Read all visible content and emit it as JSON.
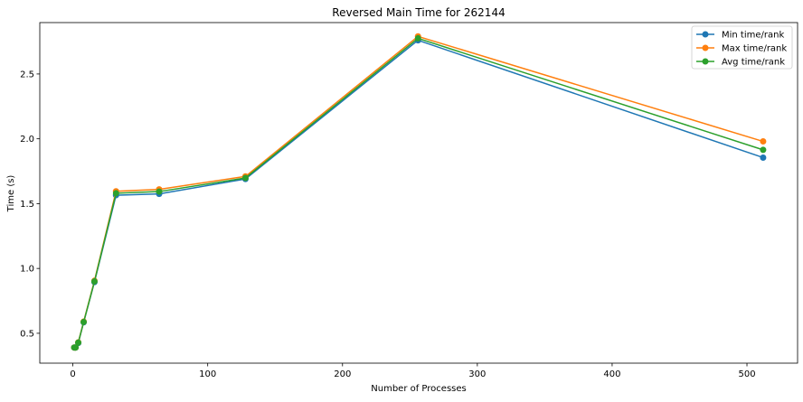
{
  "chart_data": {
    "type": "line",
    "title": "Reversed Main Time for 262144",
    "xlabel": "Number of Processes",
    "ylabel": "Time (s)",
    "xlim": [
      -24.55,
      537.55
    ],
    "ylim": [
      0.2695,
      2.8965
    ],
    "xticks": [
      0,
      100,
      200,
      300,
      400,
      500
    ],
    "xtick_labels": [
      "0",
      "100",
      "200",
      "300",
      "400",
      "500"
    ],
    "yticks": [
      0.5,
      1.0,
      1.5,
      2.0,
      2.5
    ],
    "ytick_labels": [
      "0.5",
      "1.0",
      "1.5",
      "2.0",
      "2.5"
    ],
    "grid": false,
    "legend_position": "top-right",
    "x": [
      1,
      2,
      4,
      8,
      16,
      32,
      64,
      128,
      256,
      512
    ],
    "series": [
      {
        "name": "Min time/rank",
        "color": "#1f77b4",
        "values": [
          0.39,
          0.39,
          0.425,
          0.585,
          0.895,
          1.565,
          1.575,
          1.69,
          2.76,
          1.855
        ]
      },
      {
        "name": "Max time/rank",
        "color": "#ff7f0e",
        "values": [
          0.39,
          0.39,
          0.43,
          0.59,
          0.905,
          1.595,
          1.61,
          1.71,
          2.79,
          1.98
        ]
      },
      {
        "name": "Avg time/rank",
        "color": "#2ca02c",
        "values": [
          0.39,
          0.39,
          0.428,
          0.587,
          0.9,
          1.58,
          1.593,
          1.698,
          2.775,
          1.915
        ]
      }
    ]
  }
}
